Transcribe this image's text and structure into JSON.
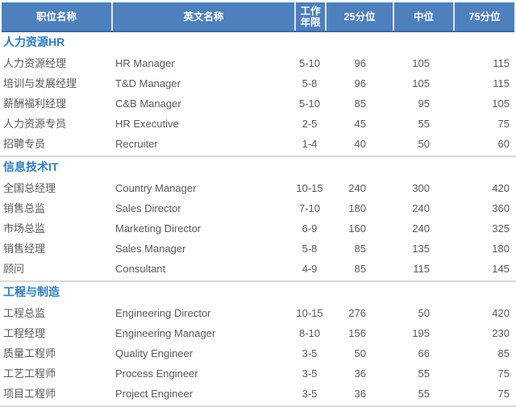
{
  "colors": {
    "header_bg": "#4d80bd",
    "header_border_bottom": "#3a67a4",
    "header_divider": "#dce6f1",
    "header_text": "#ffffff",
    "section_title": "#2b7dc3",
    "body_text": "#595959",
    "section_divider": "#d9d9d9"
  },
  "table": {
    "headers": [
      "职位名称",
      "英文名称",
      "工作年限",
      "25分位",
      "中位",
      "75分位"
    ],
    "sections": [
      {
        "title": "人力资源HR",
        "rows": [
          {
            "title_cn": "人力资源经理",
            "title_en": "HR Manager",
            "years": "5-10",
            "p25": "96",
            "p50": "105",
            "p75": "115"
          },
          {
            "title_cn": "培训与发展经理",
            "title_en": "T&D Manager",
            "years": "5-8",
            "p25": "96",
            "p50": "105",
            "p75": "115"
          },
          {
            "title_cn": "薪酬福利经理",
            "title_en": "C&B Manager",
            "years": "5-10",
            "p25": "85",
            "p50": "95",
            "p75": "105"
          },
          {
            "title_cn": "人力资源专员",
            "title_en": "HR Executive",
            "years": "2-5",
            "p25": "45",
            "p50": "55",
            "p75": "75"
          },
          {
            "title_cn": "招聘专员",
            "title_en": "Recruiter",
            "years": "1-4",
            "p25": "40",
            "p50": "50",
            "p75": "60"
          }
        ]
      },
      {
        "title": "信息技术IT",
        "rows": [
          {
            "title_cn": "全国总经理",
            "title_en": "Country Manager",
            "years": "10-15",
            "p25": "240",
            "p50": "300",
            "p75": "420"
          },
          {
            "title_cn": "销售总监",
            "title_en": "Sales Director",
            "years": "7-10",
            "p25": "180",
            "p50": "240",
            "p75": "360"
          },
          {
            "title_cn": "市场总监",
            "title_en": "Marketing Director",
            "years": "6-9",
            "p25": "160",
            "p50": "240",
            "p75": "325"
          },
          {
            "title_cn": "销售经理",
            "title_en": "Sales Manager",
            "years": "5-8",
            "p25": "85",
            "p50": "135",
            "p75": "180"
          },
          {
            "title_cn": "顾问",
            "title_en": "Consultant",
            "years": "4-9",
            "p25": "85",
            "p50": "115",
            "p75": "145"
          }
        ]
      },
      {
        "title": "工程与制造",
        "rows": [
          {
            "title_cn": "工程总监",
            "title_en": "Engineering Director",
            "years": "10-15",
            "p25": "276",
            "p50": "50",
            "p75": "420"
          },
          {
            "title_cn": "工程经理",
            "title_en": "Engineering Manager",
            "years": "8-10",
            "p25": "156",
            "p50": "195",
            "p75": "230"
          },
          {
            "title_cn": "质量工程师",
            "title_en": "Quality Engineer",
            "years": "3-5",
            "p25": "50",
            "p50": "66",
            "p75": "85"
          },
          {
            "title_cn": "工艺工程师",
            "title_en": "Process Engineer",
            "years": "3-5",
            "p25": "36",
            "p50": "55",
            "p75": "75"
          },
          {
            "title_cn": "项目工程师",
            "title_en": "Project Engineer",
            "years": "3-5",
            "p25": "36",
            "p50": "55",
            "p75": "75"
          }
        ]
      }
    ]
  }
}
